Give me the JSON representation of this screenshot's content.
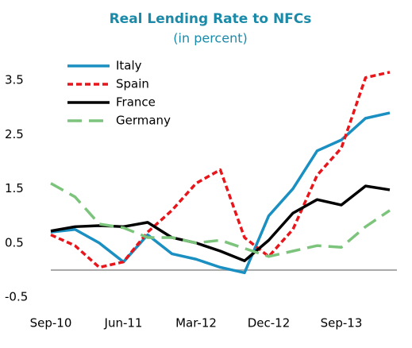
{
  "chart_data": {
    "type": "line",
    "title": "Real Lending Rate to NFCs",
    "subtitle": "(in percent)",
    "categories": [
      "Sep-10",
      null,
      null,
      "Jun-11",
      null,
      null,
      "Mar-12",
      null,
      null,
      "Dec-12",
      null,
      null,
      "Sep-13",
      null,
      null
    ],
    "series": [
      {
        "name": "Italy",
        "color": "#1a8fc1",
        "style": "solid",
        "values": [
          0.7,
          0.75,
          0.5,
          0.15,
          0.65,
          0.3,
          0.2,
          0.05,
          -0.05,
          1.0,
          1.5,
          2.2,
          2.4,
          2.8,
          2.9
        ]
      },
      {
        "name": "Spain",
        "color": "#e8151b",
        "style": "dotted",
        "values": [
          0.65,
          0.45,
          0.05,
          0.15,
          0.7,
          1.1,
          1.6,
          1.85,
          0.6,
          0.25,
          0.75,
          1.75,
          2.25,
          3.55,
          3.65
        ]
      },
      {
        "name": "France",
        "color": "#000000",
        "style": "solid",
        "values": [
          0.72,
          0.8,
          0.82,
          0.8,
          0.88,
          0.6,
          0.5,
          0.35,
          0.17,
          0.55,
          1.05,
          1.3,
          1.2,
          1.55,
          1.48
        ]
      },
      {
        "name": "Germany",
        "color": "#7cc47c",
        "style": "dashed",
        "values": [
          1.6,
          1.35,
          0.85,
          0.78,
          0.6,
          0.6,
          0.5,
          0.55,
          0.4,
          0.25,
          0.35,
          0.45,
          0.42,
          0.8,
          1.1
        ]
      }
    ],
    "ylim": [
      -0.5,
      4
    ],
    "yticks": [
      -0.5,
      0.5,
      1.5,
      2.5,
      3.5
    ],
    "zero_line": true,
    "grid": false,
    "legend": "top-left"
  }
}
